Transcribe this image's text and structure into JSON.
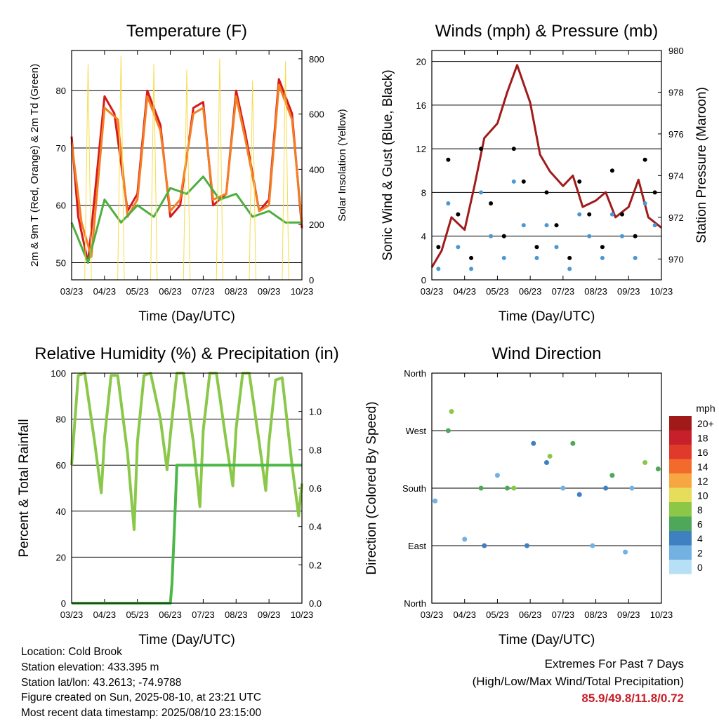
{
  "footer": {
    "location": "Location: Cold Brook",
    "elevation": "Station elevation: 433.395 m",
    "latlon": "Station lat/lon: 43.2613; -74.9788",
    "created": "Figure created on Sun, 2025-08-10, at 23:21 UTC",
    "recent": "Most recent data timestamp: 2025/08/10 23:15:00",
    "extremes_title": "Extremes For Past 7 Days",
    "extremes_sub": "(High/Low/Max Wind/Total Precipitation)",
    "extremes_values": "85.9/49.8/11.8/0.72"
  },
  "colors": {
    "red": "#d7191c",
    "orange": "#f47f22",
    "green": "#4daf3f",
    "yellow": "#f5dc4a",
    "black": "#000000",
    "blue": "#4a98d3",
    "maroon": "#a11b1b",
    "rh": "#8bc84a",
    "rain": "#4bb848"
  },
  "chart_data": [
    {
      "type": "line",
      "title": "Temperature (F)",
      "xlabel": "Time (Day/UTC)",
      "ylabel": "2m & 9m T (Red, Orange) & 2m Td (Green)",
      "ylabel_right": "Solar Insolation (Yellow)",
      "x_ticks": [
        "03/23",
        "04/23",
        "05/23",
        "06/23",
        "07/23",
        "08/23",
        "09/23",
        "10/23"
      ],
      "y_ticks": [
        50,
        60,
        70,
        80
      ],
      "ylim": [
        47,
        87
      ],
      "y2_ticks": [
        0,
        200,
        400,
        600,
        800
      ],
      "y2lim": [
        0,
        830
      ],
      "grid": true,
      "series": [
        {
          "name": "2m T",
          "color": "red",
          "x": [
            0,
            0.2,
            0.5,
            1,
            1.3,
            1.7,
            2,
            2.3,
            2.7,
            3,
            3.3,
            3.7,
            4,
            4.3,
            4.7,
            5,
            5.3,
            5.7,
            6,
            6.3,
            6.7,
            7
          ],
          "y": [
            72,
            58,
            50,
            79,
            76,
            59,
            62,
            80,
            74,
            58,
            60,
            77,
            78,
            60,
            62,
            80,
            72,
            59,
            61,
            82,
            76,
            56
          ]
        },
        {
          "name": "9m T",
          "color": "orange",
          "x": [
            0,
            0.3,
            0.6,
            1,
            1.4,
            1.7,
            2,
            2.3,
            2.7,
            3,
            3.3,
            3.7,
            4,
            4.3,
            4.7,
            5,
            5.3,
            5.7,
            6,
            6.3,
            6.7,
            7
          ],
          "y": [
            71,
            57,
            51,
            77,
            75,
            58,
            61,
            79,
            73,
            59,
            61,
            76,
            77,
            61,
            62,
            79,
            71,
            59,
            60,
            81,
            75,
            57
          ]
        },
        {
          "name": "2m Td",
          "color": "green",
          "x": [
            0,
            0.5,
            1,
            1.5,
            2,
            2.5,
            3,
            3.5,
            4,
            4.5,
            5,
            5.5,
            6,
            6.5,
            7
          ],
          "y": [
            57,
            50,
            61,
            57,
            60,
            58,
            63,
            62,
            65,
            61,
            62,
            58,
            59,
            57,
            57
          ]
        },
        {
          "name": "Solar Insolation",
          "color": "yellow",
          "axis": "right",
          "x": [
            0,
            0.4,
            0.5,
            0.6,
            1,
            1.4,
            1.5,
            1.6,
            2,
            2.4,
            2.5,
            2.6,
            3,
            3.4,
            3.5,
            3.6,
            4,
            4.4,
            4.5,
            4.6,
            5,
            5.4,
            5.5,
            5.6,
            6,
            6.4,
            6.5,
            6.6,
            7
          ],
          "y": [
            0,
            0,
            780,
            0,
            0,
            0,
            810,
            0,
            0,
            0,
            780,
            0,
            0,
            0,
            760,
            0,
            0,
            0,
            800,
            0,
            0,
            0,
            720,
            0,
            0,
            0,
            790,
            0,
            0
          ]
        }
      ]
    },
    {
      "type": "scatter",
      "title": "Winds (mph) & Pressure (mb)",
      "xlabel": "Time (Day/UTC)",
      "ylabel": "Sonic Wind & Gust (Blue, Black)",
      "ylabel_right": "Station Pressure (Maroon)",
      "x_ticks": [
        "03/23",
        "04/23",
        "05/23",
        "06/23",
        "07/23",
        "08/23",
        "09/23",
        "10/23"
      ],
      "y_ticks": [
        0,
        4,
        8,
        12,
        16,
        20
      ],
      "ylim": [
        0,
        21
      ],
      "y2_ticks": [
        970,
        972,
        974,
        976,
        978,
        980
      ],
      "y2lim": [
        969,
        980
      ],
      "grid": true,
      "series": [
        {
          "name": "Pressure",
          "color": "maroon",
          "axis": "right",
          "x": [
            0,
            0.3,
            0.6,
            1,
            1.3,
            1.6,
            2,
            2.3,
            2.6,
            3,
            3.3,
            3.6,
            4,
            4.3,
            4.6,
            5,
            5.3,
            5.6,
            6,
            6.3,
            6.6,
            7
          ],
          "y": [
            969.6,
            970.4,
            972.0,
            971.4,
            973.5,
            975.8,
            976.5,
            978.0,
            979.3,
            977.5,
            975.0,
            974.2,
            973.5,
            974.0,
            972.5,
            972.8,
            973.2,
            972.0,
            972.5,
            973.8,
            972.0,
            971.5
          ]
        },
        {
          "name": "Gust",
          "color": "black",
          "x": [
            0.2,
            0.5,
            0.8,
            1.2,
            1.5,
            1.8,
            2.2,
            2.5,
            2.8,
            3.2,
            3.5,
            3.8,
            4.2,
            4.5,
            4.8,
            5.2,
            5.5,
            5.8,
            6.2,
            6.5,
            6.8
          ],
          "y": [
            3,
            11,
            6,
            2,
            12,
            7,
            4,
            12,
            9,
            3,
            8,
            5,
            2,
            9,
            6,
            3,
            10,
            6,
            4,
            11,
            8
          ]
        },
        {
          "name": "Wind",
          "color": "blue",
          "x": [
            0.2,
            0.5,
            0.8,
            1.2,
            1.5,
            1.8,
            2.2,
            2.5,
            2.8,
            3.2,
            3.5,
            3.8,
            4.2,
            4.5,
            4.8,
            5.2,
            5.5,
            5.8,
            6.2,
            6.5,
            6.8
          ],
          "y": [
            1,
            7,
            3,
            1,
            8,
            4,
            2,
            9,
            5,
            2,
            5,
            3,
            1,
            6,
            4,
            2,
            6,
            4,
            2,
            7,
            5
          ]
        }
      ]
    },
    {
      "type": "line",
      "title": "Relative Humidity (%) & Precipitation (in)",
      "xlabel": "Time (Day/UTC)",
      "ylabel": "Percent & Total Rainfall",
      "x_ticks": [
        "03/23",
        "04/23",
        "05/23",
        "06/23",
        "07/23",
        "08/23",
        "09/23",
        "10/23"
      ],
      "y_ticks": [
        0,
        20,
        40,
        60,
        80,
        100
      ],
      "ylim": [
        0,
        100
      ],
      "y2_ticks": [
        "0.0",
        "0.2",
        "0.4",
        "0.6",
        "0.8",
        "1.0"
      ],
      "y2lim": [
        0,
        1.2
      ],
      "grid": true,
      "series": [
        {
          "name": "RH",
          "color": "rh",
          "x": [
            0,
            0.2,
            0.4,
            0.7,
            0.9,
            1,
            1.2,
            1.4,
            1.7,
            1.9,
            2,
            2.2,
            2.4,
            2.7,
            2.9,
            3,
            3.2,
            3.4,
            3.7,
            3.9,
            4,
            4.2,
            4.4,
            4.7,
            4.9,
            5,
            5.2,
            5.4,
            5.7,
            5.9,
            6,
            6.2,
            6.4,
            6.7,
            6.9,
            7
          ],
          "y": [
            60,
            99,
            100,
            70,
            48,
            72,
            99,
            99,
            65,
            32,
            70,
            99,
            100,
            80,
            58,
            73,
            100,
            100,
            70,
            42,
            75,
            100,
            100,
            70,
            51,
            76,
            100,
            100,
            70,
            49,
            70,
            97,
            98,
            60,
            38,
            52
          ]
        },
        {
          "name": "Precipitation",
          "color": "rain",
          "axis": "right",
          "x": [
            0,
            1,
            2,
            3,
            3.05,
            3.1,
            3.15,
            3.2,
            4,
            5,
            6,
            7
          ],
          "y": [
            0,
            0,
            0,
            0,
            0.1,
            0.3,
            0.5,
            0.72,
            0.72,
            0.72,
            0.72,
            0.72
          ]
        }
      ]
    },
    {
      "type": "scatter",
      "title": "Wind Direction",
      "xlabel": "Time (Day/UTC)",
      "ylabel": "Direction (Colored By Speed)",
      "x_ticks": [
        "03/23",
        "04/23",
        "05/23",
        "06/23",
        "07/23",
        "08/23",
        "09/23",
        "10/23"
      ],
      "y_ticks": [
        "North",
        "East",
        "South",
        "West",
        "North"
      ],
      "ylim": [
        0,
        360
      ],
      "grid": true,
      "legend_title": "mph",
      "legend": [
        "20+",
        "18",
        "16",
        "14",
        "12",
        "10",
        "8",
        "6",
        "4",
        "2",
        "0"
      ],
      "legend_colors": [
        "#a11a1a",
        "#c8202a",
        "#e03a2a",
        "#f26a2c",
        "#f8a641",
        "#e6de5a",
        "#8cc748",
        "#4fa85a",
        "#3f80c0",
        "#73b1e2",
        "#b7dff5"
      ],
      "points": {
        "x": [
          0.1,
          0.5,
          0.6,
          1.0,
          1.5,
          1.6,
          2.0,
          2.3,
          2.5,
          2.9,
          3.1,
          3.5,
          3.6,
          4.0,
          4.3,
          4.5,
          4.9,
          5.3,
          5.5,
          5.9,
          6.1,
          6.5,
          6.9
        ],
        "y": [
          160,
          270,
          300,
          100,
          180,
          90,
          200,
          180,
          180,
          90,
          250,
          220,
          230,
          180,
          250,
          170,
          90,
          180,
          200,
          80,
          180,
          220,
          210
        ],
        "speed": [
          2,
          6,
          8,
          2,
          6,
          4,
          3,
          6,
          8,
          4,
          5,
          4,
          8,
          3,
          6,
          4,
          2,
          5,
          6,
          3,
          2,
          8,
          6
        ]
      }
    }
  ]
}
